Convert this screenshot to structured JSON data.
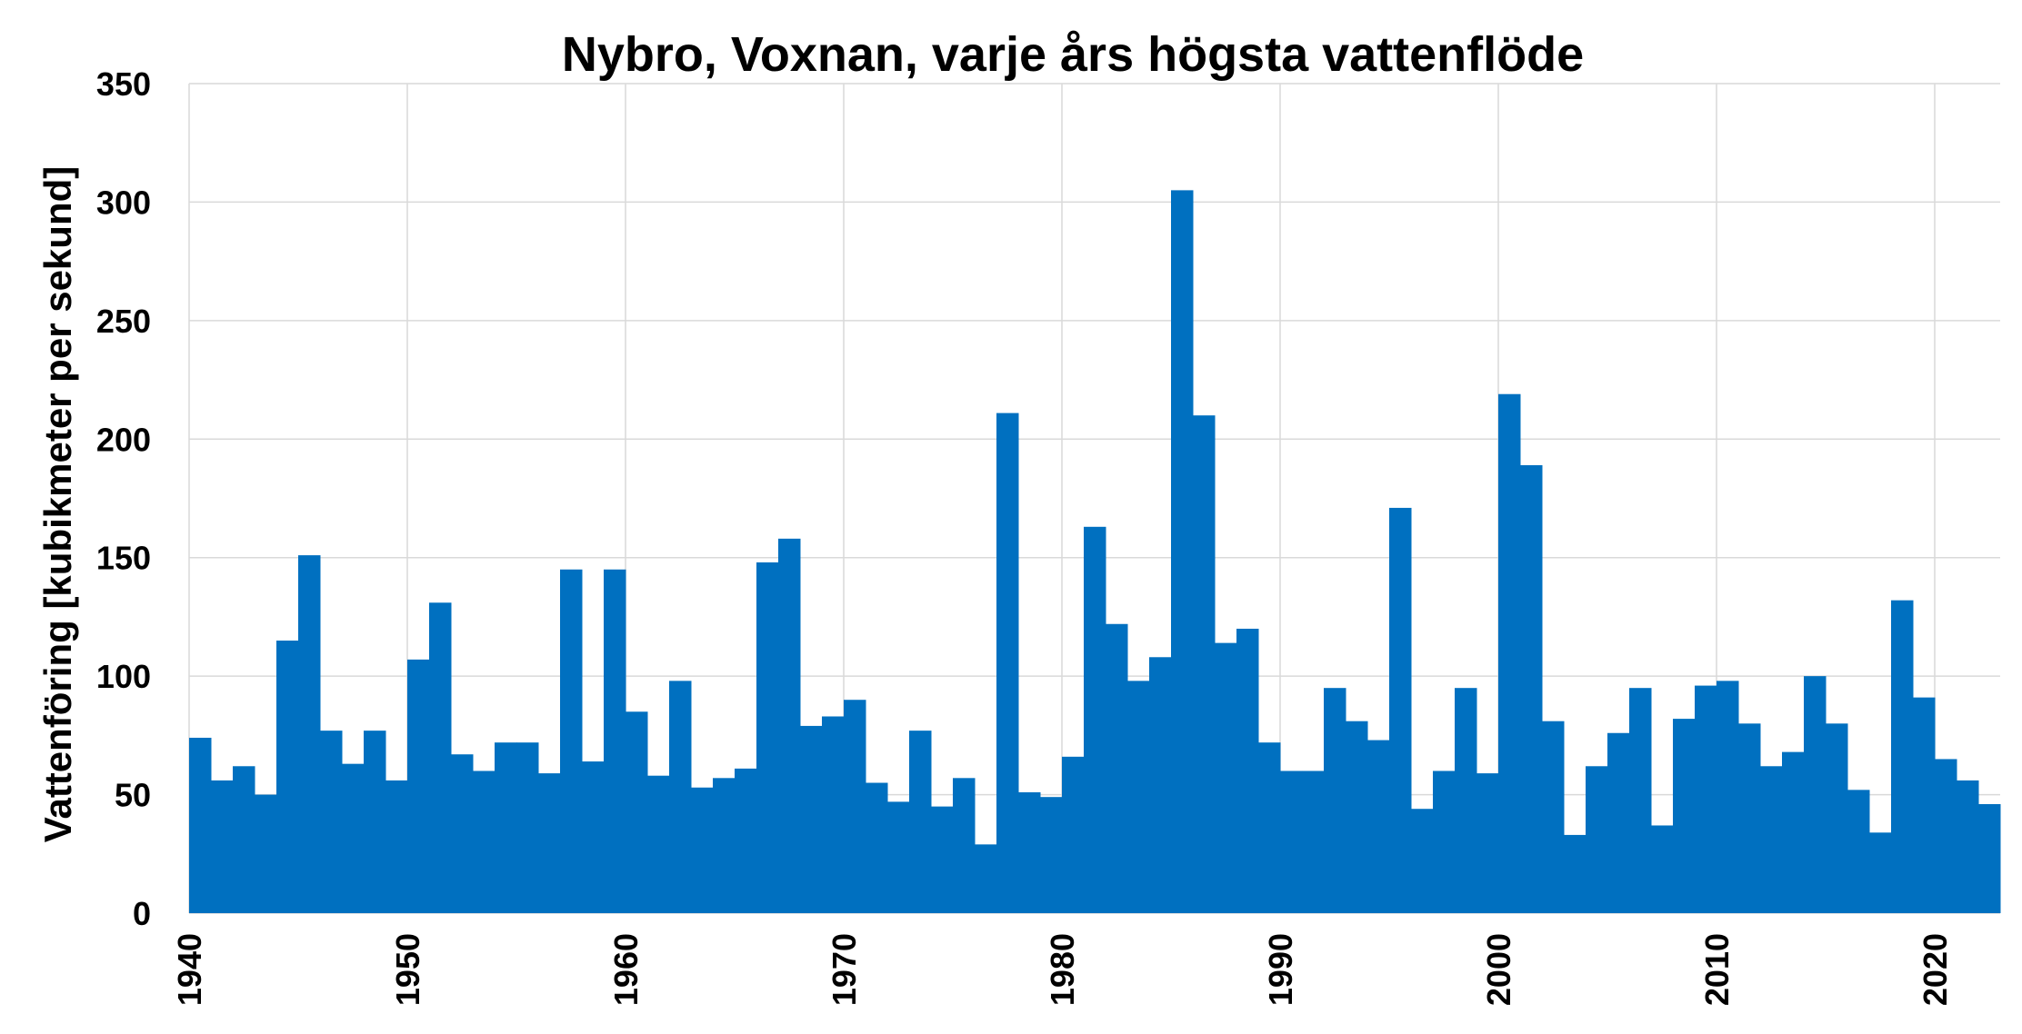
{
  "chart_data": {
    "type": "bar",
    "title": "Nybro, Voxnan, varje års högsta vattenflöde",
    "ylabel": "Vattenföring [kubikmeter per sekund]",
    "xlabel": "",
    "ylim": [
      0,
      350
    ],
    "yticks": [
      0,
      50,
      100,
      150,
      200,
      250,
      300,
      350
    ],
    "xlim": [
      1940,
      2023
    ],
    "xticks": [
      1940,
      1950,
      1960,
      1970,
      1980,
      1990,
      2000,
      2010,
      2020
    ],
    "grid": true,
    "bar_color": "#0070C0",
    "categories": [
      1940,
      1941,
      1942,
      1943,
      1944,
      1945,
      1946,
      1947,
      1948,
      1949,
      1950,
      1951,
      1952,
      1953,
      1954,
      1955,
      1956,
      1957,
      1958,
      1959,
      1960,
      1961,
      1962,
      1963,
      1964,
      1965,
      1966,
      1967,
      1968,
      1969,
      1970,
      1971,
      1972,
      1973,
      1974,
      1975,
      1976,
      1977,
      1978,
      1979,
      1980,
      1981,
      1982,
      1983,
      1984,
      1985,
      1986,
      1987,
      1988,
      1989,
      1990,
      1991,
      1992,
      1993,
      1994,
      1995,
      1996,
      1997,
      1998,
      1999,
      2000,
      2001,
      2002,
      2003,
      2004,
      2005,
      2006,
      2007,
      2008,
      2009,
      2010,
      2011,
      2012,
      2013,
      2014,
      2015,
      2016,
      2017,
      2018,
      2019,
      2020,
      2021,
      2022
    ],
    "values": [
      74,
      56,
      62,
      50,
      115,
      151,
      77,
      63,
      77,
      56,
      107,
      131,
      67,
      60,
      72,
      72,
      59,
      145,
      64,
      145,
      85,
      58,
      98,
      53,
      57,
      61,
      148,
      158,
      79,
      83,
      90,
      55,
      47,
      77,
      45,
      57,
      29,
      211,
      51,
      49,
      66,
      163,
      122,
      98,
      108,
      305,
      210,
      114,
      120,
      72,
      60,
      60,
      95,
      81,
      73,
      171,
      44,
      60,
      95,
      59,
      219,
      189,
      81,
      33,
      62,
      76,
      95,
      37,
      82,
      96,
      98,
      80,
      62,
      68,
      100,
      80,
      52,
      34,
      132,
      91,
      65,
      56,
      46
    ]
  }
}
